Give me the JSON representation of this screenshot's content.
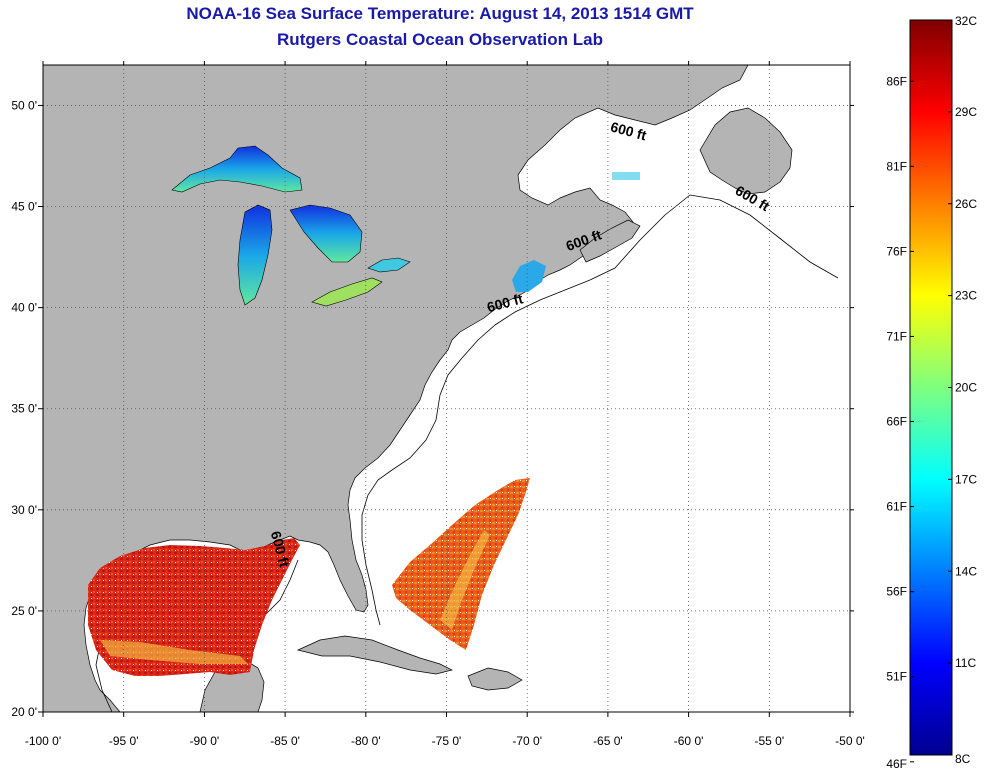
{
  "header": {
    "title": "NOAA-16 Sea Surface Temperature:  August 14, 2013 1514 GMT",
    "subtitle": "Rutgers Coastal Ocean Observation Lab"
  },
  "map": {
    "lon_range": [
      -100,
      -50
    ],
    "lat_range": [
      20,
      52
    ],
    "lon_ticks": [
      "-100 0'",
      "-95 0'",
      "-90 0'",
      "-85 0'",
      "-80 0'",
      "-75 0'",
      "-70 0'",
      "-65 0'",
      "-60 0'",
      "-55 0'",
      "-50 0'"
    ],
    "lat_ticks": [
      {
        "lat": 50,
        "label": "50 0'"
      },
      {
        "lat": 45,
        "label": "45 0'"
      },
      {
        "lat": 40,
        "label": "40 0'"
      },
      {
        "lat": 35,
        "label": "35 0'"
      },
      {
        "lat": 30,
        "label": "30 0'"
      },
      {
        "lat": 25,
        "label": "25 0'"
      },
      {
        "lat": 20,
        "label": "20 0'"
      }
    ],
    "grid": "dotted",
    "land_color": "#b4b4b4",
    "water_color": "#ffffff",
    "contour_labels": [
      {
        "text": "600 ft",
        "lon": -63.8,
        "lat": 48.5,
        "rotate": 15
      },
      {
        "text": "600 ft",
        "lon": -56.2,
        "lat": 45.2,
        "rotate": 30
      },
      {
        "text": "600 ft",
        "lon": -66.4,
        "lat": 43.1,
        "rotate": -20
      },
      {
        "text": "600 ft",
        "lon": -71.3,
        "lat": 40.0,
        "rotate": -15
      },
      {
        "text": "600 ft",
        "lon": -85.6,
        "lat": 28.0,
        "rotate": 75
      }
    ]
  },
  "colorbar": {
    "celsius_labels": [
      "32C",
      "29C",
      "26C",
      "23C",
      "20C",
      "17C",
      "14C",
      "11C",
      "8C"
    ],
    "fahrenheit_labels": [
      "86F",
      "81F",
      "76F",
      "71F",
      "66F",
      "61F",
      "56F",
      "51F",
      "46F"
    ],
    "colors": [
      "#7f0000",
      "#ff0000",
      "#ff7f00",
      "#ffff00",
      "#7fff7f",
      "#00ffff",
      "#007fff",
      "#0000ff",
      "#00008f"
    ]
  }
}
